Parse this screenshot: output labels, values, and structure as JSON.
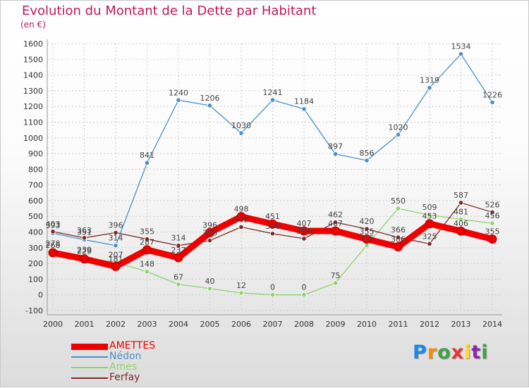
{
  "chart_data": {
    "type": "line",
    "title": "Evolution du Montant de la Dette par Habitant",
    "unit_label": "(en €)",
    "x": [
      "2000",
      "2001",
      "2002",
      "2003",
      "2004",
      "2005",
      "2006",
      "2007",
      "2008",
      "2009",
      "2010",
      "2011",
      "2012",
      "2013",
      "2014"
    ],
    "ylim": [
      -100,
      1600
    ],
    "yticks": [
      -100,
      0,
      100,
      200,
      300,
      400,
      500,
      600,
      700,
      800,
      900,
      1000,
      1100,
      1200,
      1300,
      1400,
      1500,
      1600
    ],
    "grid": true,
    "series": [
      {
        "name": "AMETTES",
        "color": "#ee0000",
        "values": [
          268,
          229,
          181,
          287,
          237,
          396,
          498,
          451,
          407,
          407,
          355,
          306,
          453,
          406,
          355
        ],
        "labels": [
          "268",
          "229",
          "181",
          "287",
          "237",
          "396",
          "498",
          "451",
          "407",
          "407",
          "355",
          "306",
          "453",
          "406",
          "355"
        ]
      },
      {
        "name": "Nédon",
        "color": "#4a90c8",
        "values": [
          393,
          351,
          314,
          841,
          1240,
          1206,
          1030,
          1241,
          1184,
          897,
          856,
          1020,
          1319,
          1534,
          1226
        ],
        "labels": [
          "393",
          "351",
          "314",
          "841",
          "1240",
          "1206",
          "1030",
          "1241",
          "1184",
          "897",
          "856",
          "1020",
          "1319",
          "1534",
          "1226"
        ]
      },
      {
        "name": "Ames",
        "color": "#8ed36b",
        "values": [
          278,
          239,
          207,
          148,
          67,
          40,
          12,
          0,
          0,
          75,
          316,
          550,
          509,
          481,
          456
        ],
        "labels": [
          "278",
          "239",
          "207",
          "148",
          "67",
          "40",
          "12",
          "0",
          "0",
          "75",
          "316",
          "550",
          "509",
          "481",
          "456"
        ]
      },
      {
        "name": "Ferfay",
        "color": "#7b2a2a",
        "values": [
          403,
          363,
          396,
          355,
          314,
          346,
          432,
          390,
          358,
          462,
          420,
          366,
          325,
          587,
          526
        ],
        "labels": [
          "403",
          "363",
          "396",
          "355",
          "314",
          "346",
          "432",
          "390",
          "358",
          "462",
          "420",
          "366",
          "325",
          "587",
          "526"
        ]
      }
    ]
  },
  "logo": {
    "letters": [
      "P",
      "r",
      "o",
      "x",
      "i",
      "t",
      "i"
    ],
    "colors": [
      "#1e88e5",
      "#fb8c00",
      "#43a047",
      "#e53935",
      "#fdd835",
      "#8e24aa",
      "#43a047"
    ]
  }
}
